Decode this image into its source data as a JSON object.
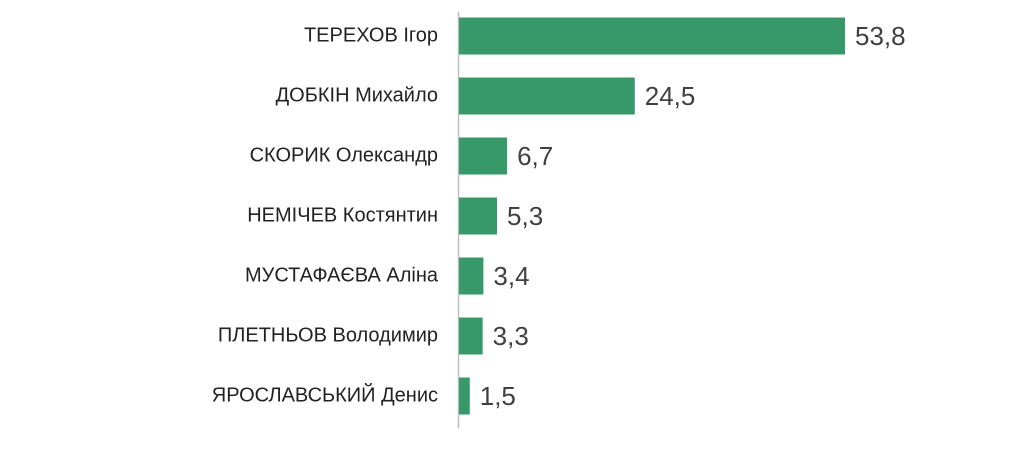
{
  "chart_data": {
    "type": "hbar",
    "categories": [
      "ТЕРЕХОВ Ігор",
      "ДОБКІН Михайло",
      "СКОРИК Олександр",
      "НЕМІЧЕВ Костянтин",
      "МУСТАФАЄВА Аліна",
      "ПЛЕТНЬОВ Володимир",
      "ЯРОСЛАВСЬКИЙ Денис"
    ],
    "values": [
      53.8,
      24.5,
      6.7,
      5.3,
      3.4,
      3.3,
      1.5
    ],
    "value_labels": [
      "53,8",
      "24,5",
      "6,7",
      "5,3",
      "3,4",
      "3,3",
      "1,5"
    ],
    "color": "#37996a"
  }
}
